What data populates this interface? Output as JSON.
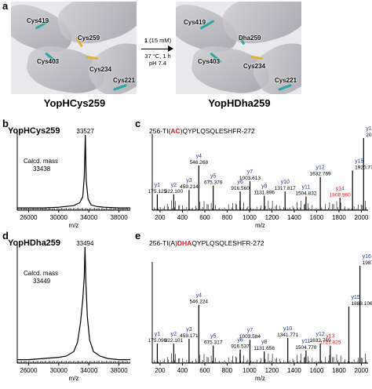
{
  "panel_a": {
    "letter": "a",
    "left_title": "YopHCys259",
    "right_title": "YopHDha259",
    "left_residues": [
      "Cys419",
      "Cys259",
      "Cys403",
      "Cys234",
      "Cys221"
    ],
    "right_residues": [
      "Cys419",
      "Dha259",
      "Cys403",
      "Cys234",
      "Cys221"
    ],
    "condition_reagent_bold": "1",
    "condition_reagent_rest": " (15 mM)",
    "condition_line2": "37 °C, 1 h",
    "condition_line3": "pH 7.4"
  },
  "chart_data": [
    {
      "panel": "b",
      "type": "line",
      "title": "YopHCys259",
      "xlabel": "m/z",
      "xlim": [
        24500,
        39500
      ],
      "xticks": [
        26000,
        30000,
        34000,
        38000
      ],
      "peak_label": "33527",
      "peak_x": 33527,
      "annotation": [
        "Calcd. mass",
        "33438"
      ],
      "x": [
        24500,
        26000,
        28000,
        30000,
        31000,
        32000,
        32800,
        33200,
        33400,
        33527,
        33650,
        33900,
        34300,
        35000,
        36000,
        38000,
        39500
      ],
      "y": [
        0.03,
        0.03,
        0.03,
        0.04,
        0.05,
        0.06,
        0.1,
        0.18,
        0.45,
        1.0,
        0.4,
        0.15,
        0.07,
        0.05,
        0.04,
        0.03,
        0.03
      ]
    },
    {
      "panel": "c",
      "type": "bar",
      "title": "256-TI(AC)QYPLQSQLESHFR-272",
      "title_parts": [
        "256-TI(",
        "AC",
        ")QYPLQSQLESHFR-272"
      ],
      "highlight_color": "#d7191c",
      "xlabel": "m/z",
      "xlim": [
        130,
        2060
      ],
      "xticks": [
        200,
        400,
        600,
        800,
        1000,
        1200,
        1400,
        1600,
        1800,
        2000
      ],
      "peaks": [
        {
          "ion": "y1",
          "mz": 175.125,
          "label": "175.125",
          "rel": 0.22
        },
        {
          "ion": "y2",
          "mz": 322.1,
          "label": "322.100",
          "rel": 0.22
        },
        {
          "ion": "y3",
          "mz": 459.214,
          "label": "459.214",
          "rel": 0.28
        },
        {
          "ion": "y4",
          "mz": 546.268,
          "label": "546.268",
          "rel": 0.62
        },
        {
          "ion": "y5",
          "mz": 675.376,
          "label": "675.376",
          "rel": 0.34
        },
        {
          "ion": "y6",
          "mz": 916.56,
          "label": "916.560",
          "rel": 0.26
        },
        {
          "ion": "y7",
          "mz": 1003.613,
          "label": "1003.613",
          "rel": 0.4
        },
        {
          "ion": "y8",
          "mz": 1131.896,
          "label": "1131.896",
          "rel": 0.2
        },
        {
          "ion": "y10",
          "mz": 1317.817,
          "label": "1317.817",
          "rel": 0.26
        },
        {
          "ion": "y11",
          "mz": 1504.832,
          "label": "1504.832",
          "rel": 0.19
        },
        {
          "ion": "y12",
          "mz": 1632.769,
          "label": "1632.769",
          "rel": 0.46
        },
        {
          "ion": "y14",
          "mz": 1808.96,
          "label": "1808.960",
          "rel": 0.17,
          "red": true
        },
        {
          "ion": "y15",
          "mz": 1920.772,
          "label": "1920.772",
          "rel": 0.55
        },
        {
          "ion": "y16",
          "mz": 2019.882,
          "label": "2019.882",
          "rel": 1.0
        }
      ]
    },
    {
      "panel": "d",
      "type": "line",
      "title": "YopHDha259",
      "xlabel": "m/z",
      "xlim": [
        24500,
        39500
      ],
      "xticks": [
        26000,
        30000,
        34000,
        38000
      ],
      "peak_label": "33494",
      "peak_x": 33494,
      "annotation": [
        "Calcd. mass",
        "33449"
      ],
      "x": [
        24500,
        26000,
        28000,
        30000,
        31000,
        32000,
        32500,
        32900,
        33200,
        33400,
        33494,
        33600,
        33800,
        34100,
        34600,
        35500,
        36500,
        38000,
        39500
      ],
      "y": [
        0.03,
        0.03,
        0.04,
        0.05,
        0.06,
        0.1,
        0.18,
        0.35,
        0.55,
        0.75,
        1.0,
        0.7,
        0.4,
        0.2,
        0.1,
        0.06,
        0.04,
        0.03,
        0.03
      ]
    },
    {
      "panel": "e",
      "type": "bar",
      "title": "256-TI(A)DHAQYPLQSQLESHFR-272",
      "title_parts": [
        "256-TI(A)",
        "DHA",
        "QYPLQSQLESHFR-272"
      ],
      "highlight_color": "#d7191c",
      "xlabel": "m/z",
      "xlim": [
        130,
        2060
      ],
      "xticks": [
        200,
        400,
        600,
        800,
        1000,
        1200,
        1400,
        1600,
        1800,
        2000
      ],
      "peaks": [
        {
          "ion": "y1",
          "mz": 175.096,
          "label": "175.096",
          "rel": 0.2
        },
        {
          "ion": "y2",
          "mz": 322.101,
          "label": "322.101",
          "rel": 0.2
        },
        {
          "ion": "y3",
          "mz": 459.171,
          "label": "459.171",
          "rel": 0.25
        },
        {
          "ion": "y4",
          "mz": 546.224,
          "label": "546.224",
          "rel": 0.6
        },
        {
          "ion": "y5",
          "mz": 675.317,
          "label": "675.317",
          "rel": 0.18
        },
        {
          "ion": "y6",
          "mz": 916.537,
          "label": "916.537",
          "rel": 0.14
        },
        {
          "ion": "y7",
          "mz": 1003.584,
          "label": "1003.584",
          "rel": 0.24
        },
        {
          "ion": "y8",
          "mz": 1131.656,
          "label": "1131.656",
          "rel": 0.12
        },
        {
          "ion": "y10",
          "mz": 1341.771,
          "label": "1341.771",
          "rel": 0.26
        },
        {
          "ion": "y11",
          "mz": 1504.77,
          "label": "1504.770",
          "rel": 0.13
        },
        {
          "ion": "y12",
          "mz": 1632.769,
          "label": "1632.769",
          "rel": 0.2
        },
        {
          "ion": "y13",
          "mz": 1721.825,
          "label": "1721.825",
          "rel": 0.18,
          "red": true
        },
        {
          "ion": "y15",
          "mz": 1888.106,
          "label": "1888.106",
          "rel": 0.58
        },
        {
          "ion": "y16",
          "mz": 1987.287,
          "label": "1987.287",
          "rel": 1.0
        }
      ]
    }
  ]
}
